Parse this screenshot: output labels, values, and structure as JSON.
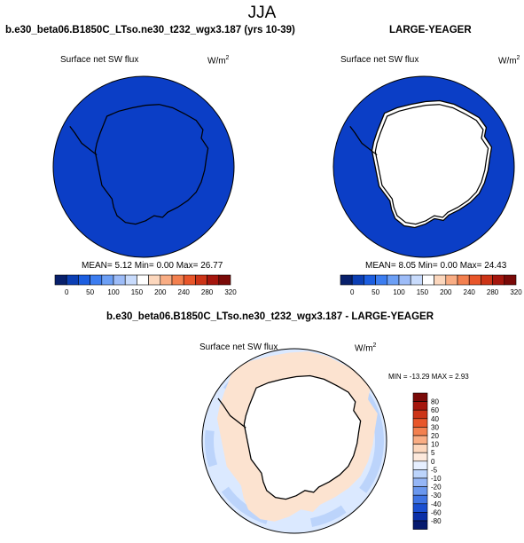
{
  "season": "JJA",
  "case_title": "b.e30_beta06.B1850C_LTso.ne30_t232_wgx3.187 (yrs 10-39)",
  "ref_title": "LARGE-YEAGER",
  "diff_title": "b.e30_beta06.B1850C_LTso.ne30_t232_wgx3.187 - LARGE-YEAGER",
  "variable": "Surface net SW flux",
  "units": "W/m",
  "units_exp": "2",
  "case_stats": "MEAN=  5.12  Min=   0.00  Max=  26.77",
  "ref_stats": "MEAN=  8.05  Min=   0.00  Max=  24.43",
  "diff_stats": "MIN = -13.29 MAX =   2.93",
  "colors": {
    "ocean_dark": "#0b3ec6",
    "ice_white": "#ffffff",
    "diff_light_blue": "#dbe9ff",
    "diff_mid_blue": "#bcd4fb",
    "diff_peach": "#fce3d0"
  },
  "chart_data": [
    {
      "type": "heatmap",
      "title": "Surface net SW flux",
      "units": "W/m2",
      "colorbar_ticks": [
        "0",
        "50",
        "100",
        "150",
        "200",
        "240",
        "280",
        "320"
      ],
      "colorbar_colors": [
        "#08206b",
        "#0c3fb4",
        "#1c5ee0",
        "#3c7df0",
        "#6c9ff5",
        "#9dbcf8",
        "#c8dbfc",
        "#ffffff",
        "#fcd7bd",
        "#f9ad84",
        "#f3804f",
        "#e8562a",
        "#cc3417",
        "#a5160d",
        "#7a0a08"
      ],
      "stats": {
        "mean": 5.12,
        "min": 0.0,
        "max": 26.77
      }
    },
    {
      "type": "heatmap",
      "title": "Surface net SW flux",
      "units": "W/m2",
      "colorbar_ticks": [
        "0",
        "50",
        "100",
        "150",
        "200",
        "240",
        "280",
        "320"
      ],
      "colorbar_colors": [
        "#08206b",
        "#0c3fb4",
        "#1c5ee0",
        "#3c7df0",
        "#6c9ff5",
        "#9dbcf8",
        "#c8dbfc",
        "#ffffff",
        "#fcd7bd",
        "#f9ad84",
        "#f3804f",
        "#e8562a",
        "#cc3417",
        "#a5160d",
        "#7a0a08"
      ],
      "stats": {
        "mean": 8.05,
        "min": 0.0,
        "max": 24.43
      }
    },
    {
      "type": "heatmap",
      "title": "Surface net SW flux",
      "units": "W/m2",
      "colorbar_ticks": [
        "80",
        "60",
        "40",
        "30",
        "20",
        "10",
        "5",
        "0",
        "-5",
        "-10",
        "-20",
        "-30",
        "-40",
        "-60",
        "-80"
      ],
      "colorbar_colors": [
        "#7a0a08",
        "#a5160d",
        "#cc3417",
        "#e8562a",
        "#f3804f",
        "#f9ad84",
        "#fcd7bd",
        "#fde9dc",
        "#e6efff",
        "#bcd4fb",
        "#95b6f6",
        "#6a97ee",
        "#3f74e4",
        "#1a4fd1",
        "#0a2fa8",
        "#061a6e"
      ],
      "stats": {
        "min": -13.29,
        "max": 2.93
      }
    }
  ]
}
